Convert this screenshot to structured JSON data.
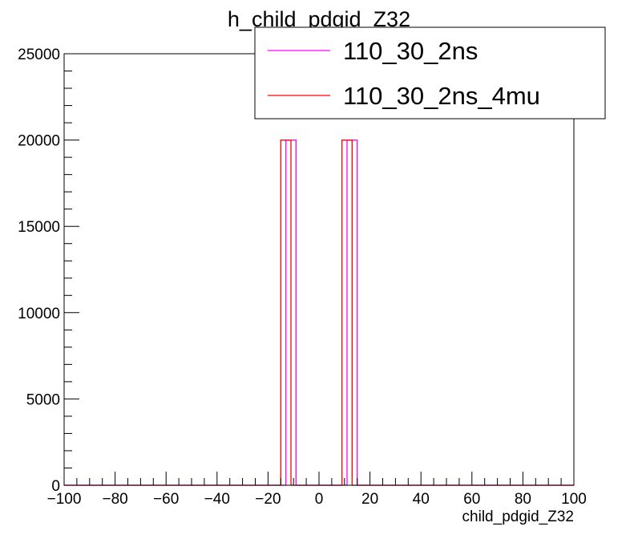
{
  "chart_data": {
    "type": "histogram",
    "title": "h_child_pdgid_Z32",
    "xlabel": "child_pdgid_Z32",
    "ylabel": "",
    "xlim": [
      -100,
      100
    ],
    "ylim": [
      0,
      25000
    ],
    "x_ticks": [
      -100,
      -80,
      -60,
      -40,
      -20,
      0,
      20,
      40,
      60,
      80,
      100
    ],
    "y_ticks": [
      0,
      5000,
      10000,
      15000,
      20000,
      25000
    ],
    "x_tick_labels": [
      "−100",
      "−80",
      "−60",
      "−40",
      "−20",
      "0",
      "20",
      "40",
      "60",
      "80",
      "100"
    ],
    "y_tick_labels": [
      "0",
      "5000",
      "10000",
      "15000",
      "20000",
      "25000"
    ],
    "bin_width": 4,
    "grid": false,
    "legend_position": "top-right",
    "series": [
      {
        "name": "110_30_2ns",
        "color": "#ff00ff",
        "bins": [
          {
            "x_low": -13,
            "x_high": -9,
            "value": 20000
          },
          {
            "x_low": 11,
            "x_high": 15,
            "value": 20000
          }
        ]
      },
      {
        "name": "110_30_2ns_4mu",
        "color": "#ff0000",
        "bins": [
          {
            "x_low": -15,
            "x_high": -11,
            "value": 20000
          },
          {
            "x_low": 9,
            "x_high": 13,
            "value": 20000
          }
        ]
      }
    ]
  }
}
